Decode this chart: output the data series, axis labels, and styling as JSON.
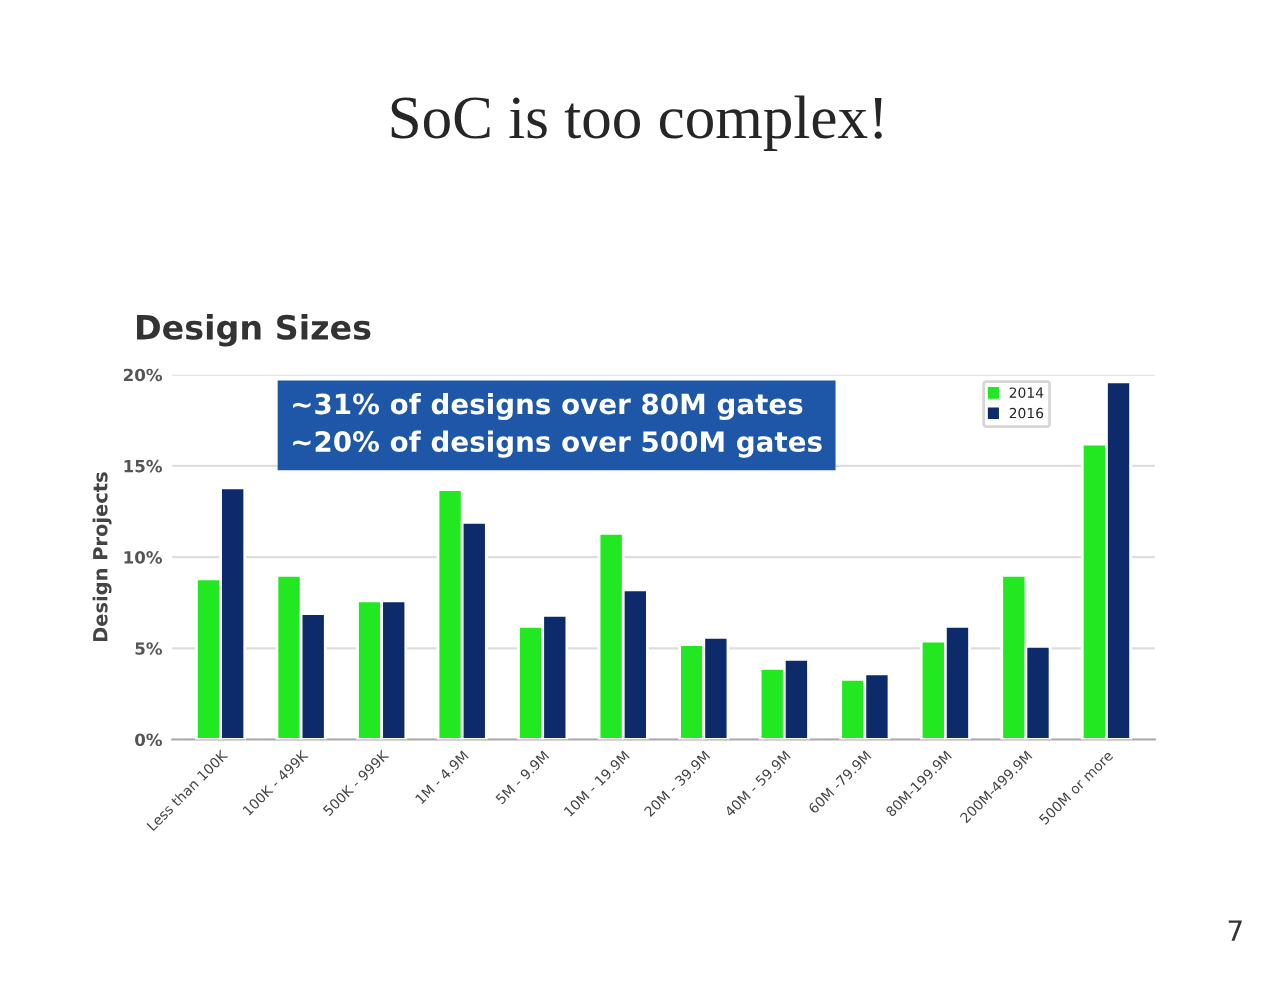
{
  "chart_data": {
    "type": "bar",
    "title": "SoC is too complex!",
    "subtitle": "Design Sizes",
    "ylabel": "Design Projects",
    "categories": [
      "Less than 100K",
      "100K - 499K",
      "500K - 999K",
      "1M - 4.9M",
      "5M - 9.9M",
      "10M - 19.9M",
      "20M - 39.9M",
      "40M - 59.9M",
      "60M -79.9M",
      "80M-199.9M",
      "200M-499.9M",
      "500M or more"
    ],
    "series": [
      {
        "name": "2014",
        "color": "#22e822",
        "values": [
          8.8,
          9.0,
          7.6,
          13.7,
          6.2,
          11.3,
          5.2,
          3.9,
          3.3,
          5.4,
          9.0,
          16.2
        ]
      },
      {
        "name": "2016",
        "color": "#0d2a6b",
        "values": [
          13.8,
          6.9,
          7.6,
          11.9,
          6.8,
          8.2,
          5.6,
          4.4,
          3.6,
          6.2,
          5.1,
          19.6
        ]
      }
    ],
    "ylim": [
      0,
      20
    ],
    "yticks": [
      {
        "value": 0,
        "label": "0%"
      },
      {
        "value": 5,
        "label": "5%"
      },
      {
        "value": 10,
        "label": "10%"
      },
      {
        "value": 15,
        "label": "15%"
      },
      {
        "value": 20,
        "label": "20%"
      }
    ],
    "grid": "y",
    "legend": "top right",
    "annotations": [
      "~31% of designs over 80M gates\n~20% of designs over 500M gates",
      "7"
    ]
  }
}
